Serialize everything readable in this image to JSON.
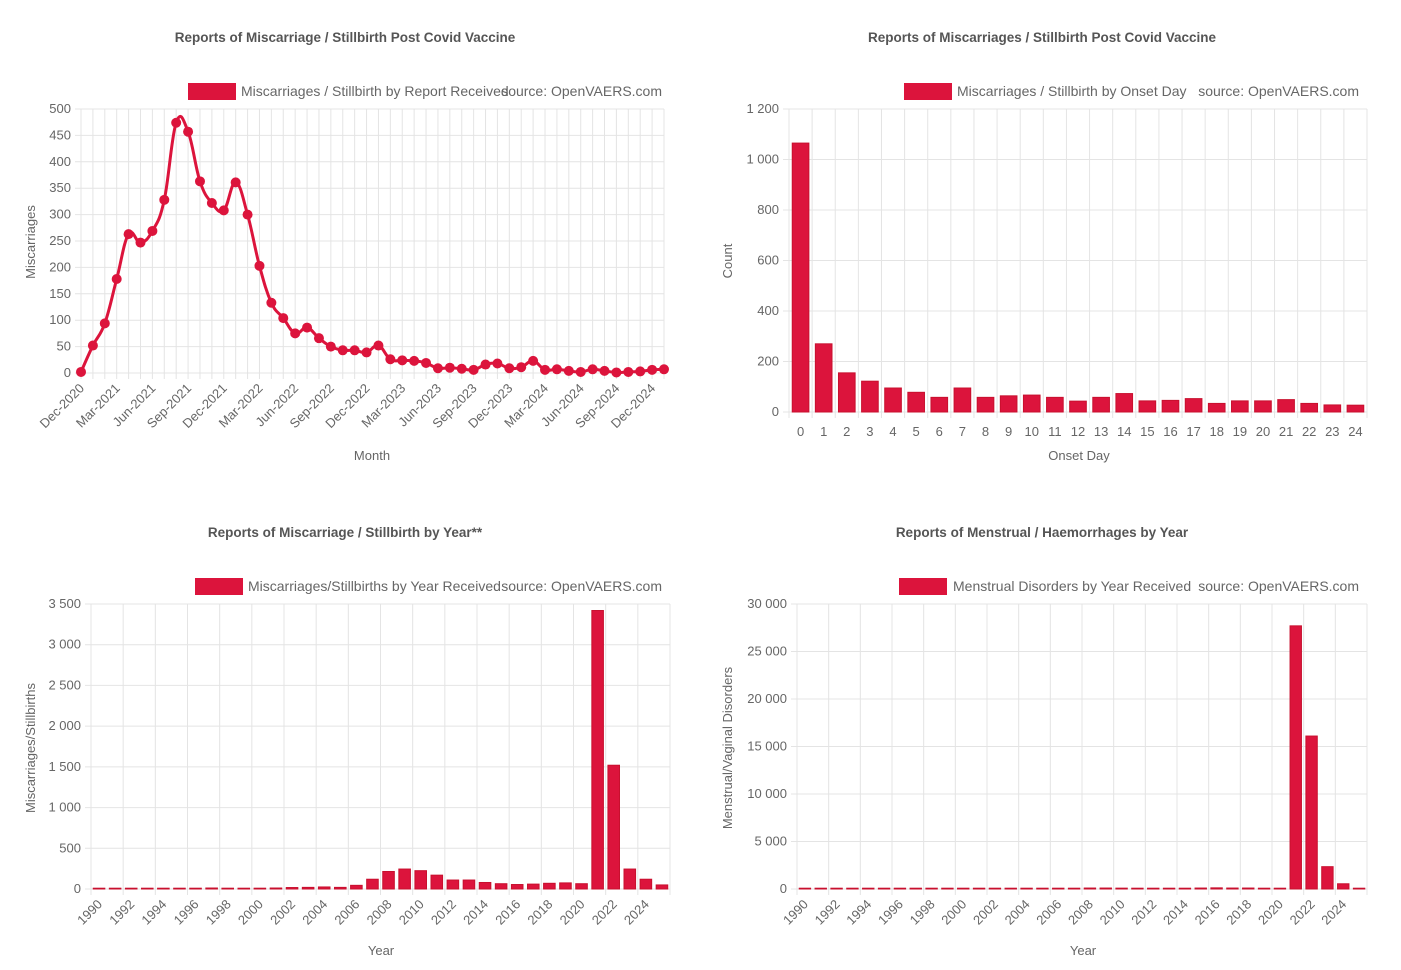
{
  "colors": {
    "accent": "#dc143c",
    "grid": "#e4e4e4",
    "text": "#666666",
    "title": "#555555"
  },
  "chart_data": [
    {
      "id": "monthly",
      "type": "line",
      "title": "Reports of Miscarriage / Stillbirth Post Covid Vaccine",
      "series": [
        {
          "name": "Miscarriages / Stillbirth by Report Received",
          "values": [
            2,
            52,
            94,
            178,
            263,
            247,
            269,
            328,
            474,
            457,
            363,
            322,
            308,
            361,
            300,
            203,
            133,
            104,
            75,
            86,
            66,
            50,
            43,
            43,
            39,
            52,
            26,
            24,
            23,
            19,
            9,
            10,
            8,
            6,
            16,
            18,
            9,
            11,
            23,
            6,
            7,
            4,
            2,
            7,
            4,
            1,
            2,
            3,
            6,
            7
          ]
        }
      ],
      "source": "source: OpenVAERS.com",
      "xlabel": "Month",
      "ylabel": "Miscarriages",
      "ylim": [
        0,
        500
      ],
      "yticks": [
        0,
        50,
        100,
        150,
        200,
        250,
        300,
        350,
        400,
        450,
        500
      ],
      "ytick_labels": [
        "0",
        "50",
        "100",
        "150",
        "200",
        "250",
        "300",
        "350",
        "400",
        "450",
        "500"
      ],
      "xtick_labels": [
        "Dec-2020",
        "Mar-2021",
        "Jun-2021",
        "Sep-2021",
        "Dec-2021",
        "Mar-2022",
        "Jun-2022",
        "Sep-2022",
        "Dec-2022",
        "Mar-2023",
        "Jun-2023",
        "Sep-2023",
        "Dec-2023",
        "Mar-2024",
        "Jun-2024",
        "Sep-2024",
        "Dec-2024"
      ],
      "grid": true
    },
    {
      "id": "onset",
      "type": "bar",
      "title": "Reports of Miscarriages / Stillbirth Post Covid Vaccine",
      "categories": [
        "0",
        "1",
        "2",
        "3",
        "4",
        "5",
        "6",
        "7",
        "8",
        "9",
        "10",
        "11",
        "12",
        "13",
        "14",
        "15",
        "16",
        "17",
        "18",
        "19",
        "20",
        "21",
        "22",
        "23",
        "24"
      ],
      "series": [
        {
          "name": "Miscarriages / Stillbirth by Onset Day",
          "values": [
            1065,
            270,
            155,
            122,
            95,
            78,
            58,
            95,
            58,
            64,
            67,
            58,
            43,
            58,
            73,
            44,
            46,
            53,
            34,
            44,
            44,
            49,
            34,
            28,
            27
          ]
        }
      ],
      "source": "source: OpenVAERS.com",
      "xlabel": "Onset Day",
      "ylabel": "Count",
      "ylim": [
        0,
        1200
      ],
      "yticks": [
        0,
        200,
        400,
        600,
        800,
        1000,
        1200
      ],
      "ytick_labels": [
        "0",
        "200",
        "400",
        "600",
        "800",
        "1 000",
        "1 200"
      ],
      "grid": true
    },
    {
      "id": "yearly",
      "type": "bar",
      "title": "Reports of Miscarriage / Stillbirth by Year**",
      "categories": [
        "1990",
        "1991",
        "1992",
        "1993",
        "1994",
        "1995",
        "1996",
        "1997",
        "1998",
        "1999",
        "2000",
        "2001",
        "2002",
        "2003",
        "2004",
        "2005",
        "2006",
        "2007",
        "2008",
        "2009",
        "2010",
        "2011",
        "2012",
        "2013",
        "2014",
        "2015",
        "2016",
        "2017",
        "2018",
        "2019",
        "2020",
        "2021",
        "2022",
        "2023",
        "2024",
        "2025"
      ],
      "series": [
        {
          "name": "Miscarriages/Stillbirths by Year Received",
          "values": [
            2,
            3,
            3,
            3,
            3,
            4,
            8,
            12,
            10,
            6,
            10,
            12,
            18,
            20,
            25,
            20,
            45,
            120,
            215,
            245,
            225,
            170,
            110,
            110,
            80,
            65,
            55,
            60,
            70,
            75,
            65,
            3420,
            1520,
            245,
            120,
            50
          ]
        }
      ],
      "source": "source: OpenVAERS.com",
      "xlabel": "Year",
      "ylabel": "Miscarriages/Stillbirths",
      "ylim": [
        0,
        3500
      ],
      "yticks": [
        0,
        500,
        1000,
        1500,
        2000,
        2500,
        3000,
        3500
      ],
      "ytick_labels": [
        "0",
        "500",
        "1 000",
        "1 500",
        "2 000",
        "2 500",
        "3 000",
        "3 500"
      ],
      "xtick_labels": [
        "1990",
        "1992",
        "1994",
        "1996",
        "1998",
        "2000",
        "2002",
        "2004",
        "2006",
        "2008",
        "2010",
        "2012",
        "2014",
        "2016",
        "2018",
        "2020",
        "2022",
        "2024"
      ],
      "grid": true
    },
    {
      "id": "menstrual",
      "type": "bar",
      "title": "Reports of Menstrual / Haemorrhages by Year",
      "categories": [
        "1990",
        "1991",
        "1992",
        "1993",
        "1994",
        "1995",
        "1996",
        "1997",
        "1998",
        "1999",
        "2000",
        "2001",
        "2002",
        "2003",
        "2004",
        "2005",
        "2006",
        "2007",
        "2008",
        "2009",
        "2010",
        "2011",
        "2012",
        "2013",
        "2014",
        "2015",
        "2016",
        "2017",
        "2018",
        "2019",
        "2020",
        "2021",
        "2022",
        "2023",
        "2024",
        "2025"
      ],
      "series": [
        {
          "name": "Menstrual Disorders by Year Received",
          "values": [
            10,
            10,
            20,
            20,
            20,
            15,
            15,
            20,
            30,
            25,
            25,
            25,
            30,
            30,
            40,
            30,
            40,
            60,
            100,
            100,
            90,
            80,
            70,
            40,
            70,
            100,
            120,
            100,
            100,
            50,
            30,
            27700,
            16100,
            2350,
            550,
            80
          ]
        }
      ],
      "source": "source: OpenVAERS.com",
      "xlabel": "Year",
      "ylabel": "Menstrual/Vaginal Disorders",
      "ylim": [
        0,
        30000
      ],
      "yticks": [
        0,
        5000,
        10000,
        15000,
        20000,
        25000,
        30000
      ],
      "ytick_labels": [
        "0",
        "5 000",
        "10 000",
        "15 000",
        "20 000",
        "25 000",
        "30 000"
      ],
      "xtick_labels": [
        "1990",
        "1992",
        "1994",
        "1996",
        "1998",
        "2000",
        "2002",
        "2004",
        "2006",
        "2008",
        "2010",
        "2012",
        "2014",
        "2016",
        "2018",
        "2020",
        "2022",
        "2024"
      ],
      "grid": true
    }
  ]
}
